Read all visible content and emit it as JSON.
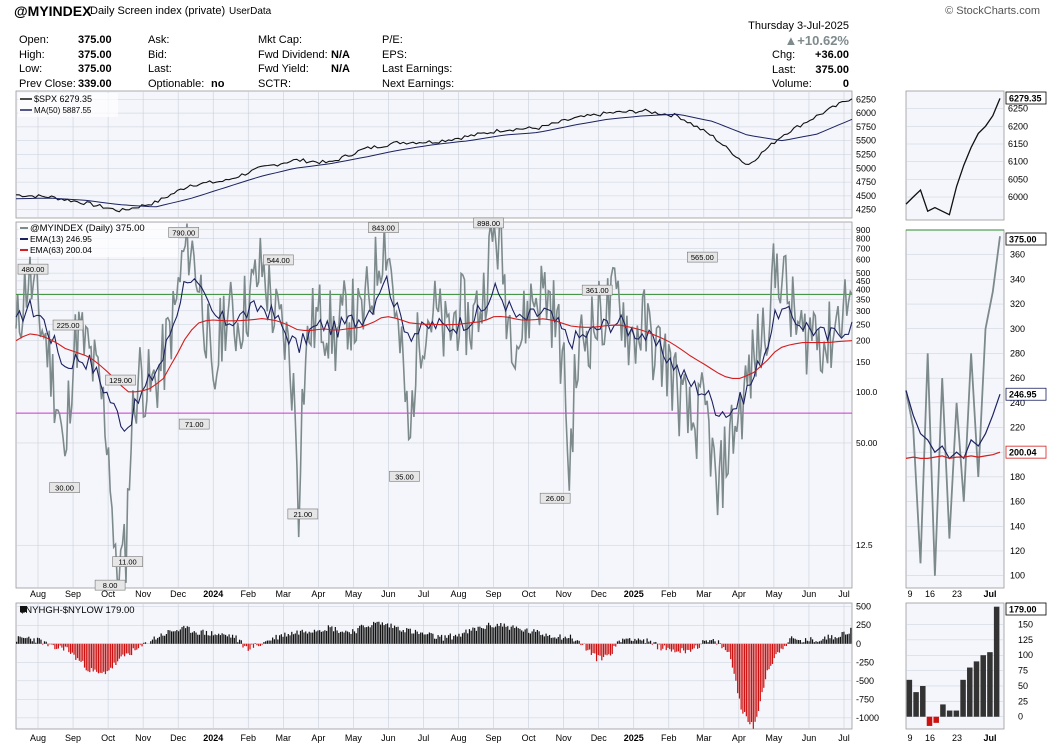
{
  "header": {
    "symbol": "@MYINDEX",
    "description": "Daily Screen index (private)",
    "source": "UserData",
    "watermark": "© StockCharts.com",
    "date": "Thursday  3-Jul-2025",
    "pct_change": "+10.62%",
    "quote_left": [
      {
        "label": "Open:",
        "value": "375.00"
      },
      {
        "label": "High:",
        "value": "375.00"
      },
      {
        "label": "Low:",
        "value": "375.00"
      },
      {
        "label": "Prev Close:",
        "value": "339.00"
      }
    ],
    "quote_mid1": [
      {
        "label": "Ask:",
        "value": ""
      },
      {
        "label": "Bid:",
        "value": ""
      },
      {
        "label": "Last:",
        "value": ""
      },
      {
        "label": "Optionable:",
        "value": "no"
      }
    ],
    "quote_mid2": [
      {
        "label": "Mkt Cap:",
        "value": ""
      },
      {
        "label": "Fwd Dividend:",
        "value": "N/A"
      },
      {
        "label": "Fwd Yield:",
        "value": "N/A"
      },
      {
        "label": "SCTR:",
        "value": ""
      }
    ],
    "quote_mid3": [
      {
        "label": "P/E:",
        "value": ""
      },
      {
        "label": "EPS:",
        "value": ""
      },
      {
        "label": "Last Earnings:",
        "value": ""
      },
      {
        "label": "Next Earnings:",
        "value": ""
      }
    ],
    "quote_right": [
      {
        "label": "Chg:",
        "value": "+36.00"
      },
      {
        "label": "Last:",
        "value": "375.00"
      },
      {
        "label": "Volume:",
        "value": "0"
      }
    ]
  },
  "colors": {
    "panel_bg": "#f4f6fb",
    "gray_line": "#7d8a8c",
    "navy": "#1c2260",
    "red": "#d21f1f",
    "green": "#2e8b2e",
    "magenta": "#cc33cc",
    "grid": "#c9ced8",
    "bar_pos": "#111111",
    "bar_neg": "#cc1111",
    "badge_bg": "#e6e6e6"
  },
  "chart_data": [
    {
      "name": "spx_panel",
      "type": "line",
      "legend": [
        "$SPX 6279.35",
        "MA(50) 5887.55"
      ],
      "y_ticks": [
        "6250",
        "6000",
        "5750",
        "5500",
        "5250",
        "5000",
        "4750",
        "4500",
        "4250"
      ],
      "ylim": [
        4100,
        6400
      ],
      "last_value_label": "6279.35",
      "series": [
        {
          "name": "$SPX",
          "x": [
            0,
            1,
            2,
            3,
            4,
            5,
            6,
            7,
            8,
            9,
            10,
            11,
            12,
            13,
            14,
            15,
            16,
            17,
            18,
            19,
            20,
            21,
            22,
            23,
            24
          ],
          "values": [
            4520,
            4480,
            4370,
            4230,
            4380,
            4700,
            4770,
            5000,
            5150,
            5100,
            5350,
            5470,
            5480,
            5580,
            5700,
            5730,
            5900,
            6000,
            6040,
            5950,
            5580,
            5050,
            5600,
            5950,
            6279
          ]
        },
        {
          "name": "MA(50)",
          "x": [
            0,
            1,
            2,
            3,
            4,
            5,
            6,
            7,
            8,
            9,
            10,
            11,
            12,
            13,
            14,
            15,
            16,
            17,
            18,
            19,
            20,
            21,
            22,
            23,
            24
          ],
          "values": [
            4450,
            4460,
            4420,
            4340,
            4300,
            4450,
            4650,
            4850,
            5000,
            5080,
            5200,
            5330,
            5430,
            5500,
            5600,
            5650,
            5780,
            5890,
            5950,
            5980,
            5850,
            5600,
            5500,
            5620,
            5888
          ]
        }
      ]
    },
    {
      "name": "myindex_panel",
      "type": "line",
      "scale": "log",
      "legend": [
        "@MYINDEX (Daily) 375.00",
        "EMA(13) 246.95",
        "EMA(63) 200.04"
      ],
      "y_ticks": [
        "900",
        "800",
        "700",
        "600",
        "500",
        "450",
        "400",
        "350",
        "300",
        "250",
        "200",
        "150",
        "100.0",
        "50.00",
        "12.5"
      ],
      "ylim": [
        7,
        1000
      ],
      "horizontal_lines": {
        "green": 375,
        "magenta": 75
      },
      "annotations": [
        {
          "x": 0.2,
          "value": 480,
          "label": "480.00"
        },
        {
          "x": 1.1,
          "value": 30,
          "label": "30.00"
        },
        {
          "x": 1.2,
          "value": 225,
          "label": "225.00"
        },
        {
          "x": 2.4,
          "value": 8,
          "label": "8.00"
        },
        {
          "x": 2.9,
          "value": 11,
          "label": "11.00"
        },
        {
          "x": 2.7,
          "value": 129,
          "label": "129.00"
        },
        {
          "x": 4.5,
          "value": 790,
          "label": "790.00"
        },
        {
          "x": 4.8,
          "value": 71,
          "label": "71.00"
        },
        {
          "x": 7.2,
          "value": 544,
          "label": "544.00"
        },
        {
          "x": 7.9,
          "value": 21,
          "label": "21.00"
        },
        {
          "x": 10.2,
          "value": 843,
          "label": "843.00"
        },
        {
          "x": 10.8,
          "value": 35,
          "label": "35.00"
        },
        {
          "x": 13.2,
          "value": 898,
          "label": "898.00"
        },
        {
          "x": 15.1,
          "value": 26,
          "label": "26.00"
        },
        {
          "x": 16.3,
          "value": 361,
          "label": "361.00"
        },
        {
          "x": 19.3,
          "value": 565,
          "label": "565.00"
        }
      ],
      "last_value_labels": [
        "375.00",
        "246.95",
        "200.04"
      ],
      "series": [
        {
          "name": "@MYINDEX",
          "values": [
            200,
            480,
            260,
            120,
            30,
            225,
            160,
            90,
            8,
            11,
            129,
            100,
            150,
            300,
            790,
            400,
            71,
            300,
            250,
            350,
            544,
            280,
            200,
            21,
            250,
            280,
            200,
            300,
            250,
            400,
            843,
            220,
            35,
            250,
            300,
            200,
            300,
            250,
            350,
            898,
            280,
            200,
            350,
            400,
            250,
            26,
            200,
            250,
            300,
            361,
            200,
            250,
            180,
            150,
            90,
            60,
            80,
            20,
            50,
            80,
            150,
            250,
            565,
            300,
            200,
            250,
            180,
            300,
            375
          ]
        },
        {
          "name": "EMA(13)",
          "values": [
            250,
            320,
            280,
            200,
            140,
            160,
            150,
            110,
            80,
            60,
            90,
            120,
            160,
            280,
            500,
            380,
            280,
            260,
            270,
            300,
            320,
            280,
            220,
            180,
            230,
            250,
            230,
            260,
            270,
            320,
            480,
            300,
            220,
            230,
            250,
            240,
            250,
            270,
            300,
            400,
            320,
            260,
            280,
            300,
            250,
            200,
            210,
            230,
            250,
            260,
            230,
            220,
            190,
            160,
            130,
            110,
            100,
            80,
            75,
            90,
            120,
            180,
            300,
            280,
            250,
            230,
            210,
            230,
            247
          ]
        },
        {
          "name": "EMA(63)",
          "values": [
            200,
            220,
            215,
            200,
            180,
            170,
            160,
            140,
            120,
            100,
            100,
            105,
            120,
            160,
            220,
            260,
            265,
            262,
            262,
            265,
            270,
            265,
            250,
            230,
            230,
            235,
            230,
            235,
            240,
            255,
            280,
            270,
            255,
            250,
            250,
            248,
            250,
            255,
            260,
            280,
            275,
            265,
            265,
            270,
            260,
            245,
            240,
            240,
            245,
            248,
            240,
            230,
            215,
            200,
            180,
            160,
            145,
            130,
            120,
            120,
            130,
            150,
            180,
            190,
            195,
            195,
            195,
            198,
            200
          ]
        }
      ]
    },
    {
      "name": "nyhgh_panel",
      "type": "bar",
      "legend": [
        "$NYHGH-$NYLOW 179.00"
      ],
      "y_ticks": [
        "500",
        "250",
        "0",
        "-250",
        "-500",
        "-750",
        "-1000"
      ],
      "ylim": [
        -1150,
        550
      ],
      "last_value_label": "179.00",
      "values": [
        60,
        80,
        40,
        -60,
        -50,
        -200,
        -350,
        -420,
        -300,
        -150,
        -80,
        40,
        120,
        180,
        200,
        160,
        140,
        120,
        100,
        -60,
        -20,
        60,
        120,
        150,
        180,
        200,
        220,
        160,
        180,
        250,
        280,
        240,
        200,
        150,
        120,
        80,
        100,
        140,
        200,
        240,
        260,
        220,
        180,
        150,
        120,
        100,
        80,
        -40,
        -200,
        -150,
        60,
        80,
        40,
        -30,
        -80,
        -100,
        -60,
        30,
        20,
        -150,
        -900,
        -1150,
        -400,
        -100,
        60,
        40,
        50,
        80,
        120,
        179
      ]
    },
    {
      "name": "month_axis",
      "type": "axis",
      "labels": [
        "Aug",
        "Sep",
        "Oct",
        "Nov",
        "Dec",
        "2024",
        "Feb",
        "Mar",
        "Apr",
        "May",
        "Jun",
        "Jul",
        "Aug",
        "Sep",
        "Oct",
        "Nov",
        "Dec",
        "2025",
        "Feb",
        "Mar",
        "Apr",
        "May",
        "Jun",
        "Jul"
      ],
      "bold_labels": [
        "2024",
        "2025"
      ]
    },
    {
      "name": "zoom_spx",
      "type": "line",
      "y_ticks": [
        "6250",
        "6200",
        "6150",
        "6100",
        "6050",
        "6000"
      ],
      "ylim": [
        5935,
        6300
      ],
      "last_value_label": "6279.35",
      "values": [
        5980,
        6000,
        6020,
        5960,
        5970,
        5960,
        5950,
        6030,
        6090,
        6140,
        6180,
        6200,
        6230,
        6279
      ]
    },
    {
      "name": "zoom_myindex",
      "type": "line",
      "y_ticks": [
        "360",
        "340",
        "320",
        "300",
        "280",
        "260",
        "240",
        "220",
        "200",
        "180",
        "160",
        "140",
        "120",
        "100"
      ],
      "ylim": [
        90,
        380
      ],
      "last_value_labels": [
        "375.00",
        "246.95",
        "200.04"
      ],
      "series": [
        {
          "name": "@MYINDEX",
          "values": [
            250,
            220,
            110,
            280,
            100,
            260,
            130,
            240,
            160,
            280,
            180,
            300,
            330,
            375
          ]
        },
        {
          "name": "EMA(13)",
          "values": [
            250,
            230,
            215,
            210,
            200,
            205,
            195,
            200,
            195,
            210,
            205,
            215,
            230,
            247
          ]
        },
        {
          "name": "EMA(63)",
          "values": [
            195,
            196,
            195,
            195,
            196,
            197,
            195,
            196,
            196,
            197,
            196,
            197,
            198,
            200
          ]
        }
      ]
    },
    {
      "name": "zoom_nyhgh",
      "type": "bar",
      "y_ticks": [
        "150",
        "125",
        "100",
        "75",
        "50",
        "25",
        "0"
      ],
      "ylim": [
        -20,
        185
      ],
      "last_value_label": "179.00",
      "values": [
        60,
        40,
        50,
        -15,
        -10,
        20,
        10,
        10,
        60,
        80,
        90,
        100,
        105,
        179
      ]
    },
    {
      "name": "zoom_axis",
      "type": "axis",
      "labels": [
        "9",
        "16",
        "23",
        "Jul"
      ],
      "bold_labels": [
        "Jul"
      ]
    }
  ]
}
